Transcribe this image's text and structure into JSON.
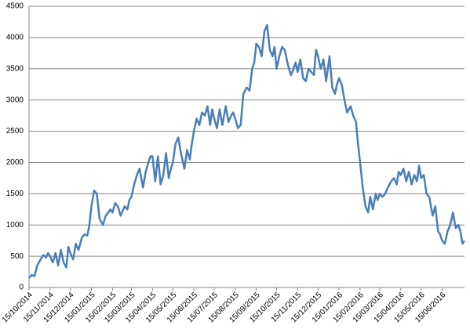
{
  "chart_data": {
    "type": "line",
    "x": [
      "15/10/2014",
      "19/10/2014",
      "23/10/2014",
      "27/10/2014",
      "01/11/2014",
      "05/11/2014",
      "09/11/2014",
      "12/11/2014",
      "15/11/2014",
      "19/11/2014",
      "23/11/2014",
      "27/11/2014",
      "01/12/2014",
      "05/12/2014",
      "09/12/2014",
      "12/12/2014",
      "15/12/2014",
      "19/12/2014",
      "23/12/2014",
      "27/12/2014",
      "01/01/2015",
      "05/01/2015",
      "09/01/2015",
      "12/01/2015",
      "15/01/2015",
      "19/01/2015",
      "23/01/2015",
      "27/01/2015",
      "01/02/2015",
      "05/02/2015",
      "09/02/2015",
      "12/02/2015",
      "15/02/2015",
      "19/02/2015",
      "23/02/2015",
      "27/02/2015",
      "01/03/2015",
      "05/03/2015",
      "09/03/2015",
      "12/03/2015",
      "15/03/2015",
      "19/03/2015",
      "23/03/2015",
      "27/03/2015",
      "01/04/2015",
      "05/04/2015",
      "09/04/2015",
      "12/04/2015",
      "15/04/2015",
      "19/04/2015",
      "23/04/2015",
      "27/04/2015",
      "01/05/2015",
      "05/05/2015",
      "09/05/2015",
      "12/05/2015",
      "15/05/2015",
      "19/05/2015",
      "23/05/2015",
      "27/05/2015",
      "01/06/2015",
      "05/06/2015",
      "09/06/2015",
      "12/06/2015",
      "15/06/2015",
      "19/06/2015",
      "23/06/2015",
      "27/06/2015",
      "01/07/2015",
      "05/07/2015",
      "09/07/2015",
      "12/07/2015",
      "15/07/2015",
      "19/07/2015",
      "23/07/2015",
      "27/07/2015",
      "01/08/2015",
      "05/08/2015",
      "09/08/2015",
      "12/08/2015",
      "15/08/2015",
      "19/08/2015",
      "23/08/2015",
      "27/08/2015",
      "01/09/2015",
      "05/09/2015",
      "09/09/2015",
      "12/09/2015",
      "15/09/2015",
      "19/09/2015",
      "23/09/2015",
      "27/09/2015",
      "01/10/2015",
      "05/10/2015",
      "09/10/2015",
      "12/10/2015",
      "15/10/2015",
      "19/10/2015",
      "23/10/2015",
      "27/10/2015",
      "01/11/2015",
      "05/11/2015",
      "09/11/2015",
      "12/11/2015",
      "15/11/2015",
      "19/11/2015",
      "23/11/2015",
      "27/11/2015",
      "01/12/2015",
      "05/12/2015",
      "09/12/2015",
      "12/12/2015",
      "15/12/2015",
      "19/12/2015",
      "23/12/2015",
      "27/12/2015",
      "01/01/2016",
      "05/01/2016",
      "09/01/2016",
      "12/01/2016",
      "15/01/2016",
      "19/01/2016",
      "23/01/2016",
      "27/01/2016",
      "01/02/2016",
      "05/02/2016",
      "09/02/2016",
      "12/02/2016",
      "15/02/2016",
      "19/02/2016",
      "23/02/2016",
      "27/02/2016",
      "01/03/2016",
      "05/03/2016",
      "09/03/2016",
      "12/03/2016",
      "15/03/2016",
      "19/03/2016",
      "23/03/2016",
      "27/03/2016",
      "01/04/2016",
      "05/04/2016",
      "09/04/2016",
      "12/04/2016",
      "15/04/2016",
      "19/04/2016",
      "23/04/2016",
      "27/04/2016",
      "01/05/2016",
      "05/05/2016",
      "09/05/2016",
      "12/05/2016",
      "15/05/2016",
      "19/05/2016",
      "23/05/2016",
      "27/05/2016",
      "01/06/2016",
      "05/06/2016",
      "09/06/2016",
      "12/06/2016",
      "15/06/2016",
      "19/06/2016",
      "23/06/2016",
      "27/06/2016",
      "01/07/2016",
      "05/07/2016",
      "09/07/2016",
      "12/07/2016",
      "15/07/2016",
      "18/07/2016"
    ],
    "series": [
      {
        "color": "#4a7ebb",
        "values": [
          150,
          200,
          180,
          350,
          450,
          520,
          480,
          550,
          500,
          400,
          550,
          350,
          600,
          400,
          320,
          650,
          550,
          450,
          700,
          600,
          800,
          850,
          830,
          1000,
          1300,
          1550,
          1500,
          1100,
          1000,
          1150,
          1200,
          1250,
          1200,
          1350,
          1300,
          1150,
          1200,
          1300,
          1250,
          1400,
          1450,
          1650,
          1800,
          1900,
          1600,
          1850,
          2000,
          2100,
          2100,
          1700,
          2100,
          1650,
          1800,
          2150,
          1750,
          1900,
          2000,
          2300,
          2400,
          2150,
          1900,
          2200,
          2050,
          2300,
          2500,
          2700,
          2600,
          2800,
          2750,
          2900,
          2600,
          2850,
          2700,
          2550,
          2850,
          2600,
          2900,
          2650,
          2750,
          2800,
          2700,
          2550,
          2600,
          3100,
          3200,
          3150,
          3500,
          3600,
          3900,
          3850,
          3700,
          4100,
          4200,
          3800,
          3700,
          3850,
          3500,
          3700,
          3850,
          3800,
          3550,
          3400,
          3500,
          3600,
          3450,
          3650,
          3350,
          3300,
          3500,
          3450,
          3400,
          3800,
          3700,
          3500,
          3650,
          3300,
          3700,
          3200,
          3100,
          3250,
          3350,
          3250,
          3000,
          2800,
          2900,
          2750,
          2650,
          2300,
          2000,
          1600,
          1300,
          1200,
          1450,
          1250,
          1500,
          1400,
          1500,
          1450,
          1500,
          1600,
          1700,
          1750,
          1650,
          1850,
          1800,
          1900,
          1700,
          1850,
          1650,
          1800,
          1700,
          1950,
          1750,
          1800,
          1500,
          1450,
          1150,
          1300,
          900,
          850,
          750,
          700,
          900,
          1000,
          1200,
          950,
          1000,
          900,
          700,
          750
        ]
      }
    ],
    "xlim": [
      "15/10/2014",
      "18/07/2016"
    ],
    "xticks": [
      "15/10/2014",
      "15/11/2014",
      "15/12/2014",
      "15/01/2015",
      "15/02/2015",
      "15/03/2015",
      "15/04/2015",
      "15/05/2015",
      "15/06/2015",
      "15/07/2015",
      "15/08/2015",
      "15/09/2015",
      "15/10/2015",
      "15/11/2015",
      "15/12/2015",
      "15/01/2016",
      "15/02/2016",
      "15/03/2016",
      "15/04/2016",
      "15/05/2016",
      "15/06/2016"
    ],
    "ylim": [
      0,
      4500
    ],
    "yticks": [
      0,
      500,
      1000,
      1500,
      2000,
      2500,
      3000,
      3500,
      4000,
      4500
    ],
    "grid": true
  }
}
